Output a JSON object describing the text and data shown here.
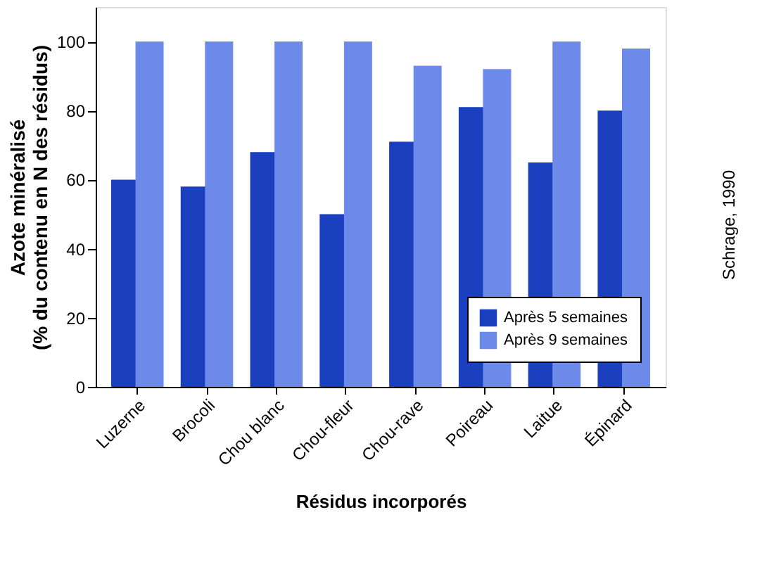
{
  "chart_data": {
    "type": "bar",
    "categories": [
      "Luzerne",
      "Brocoli",
      "Chou blanc",
      "Chou-fleur",
      "Chou-rave",
      "Poireau",
      "Laitue",
      "Épinard"
    ],
    "series": [
      {
        "name": "Après 5 semaines",
        "color": "#1a3fbf",
        "values": [
          60,
          58,
          68,
          50,
          71,
          81,
          65,
          80
        ]
      },
      {
        "name": "Après 9 semaines",
        "color": "#6d8aea",
        "values": [
          100,
          100,
          100,
          100,
          93,
          92,
          100,
          98
        ]
      }
    ],
    "xlabel": "Résidus incorporés",
    "ylabel": "Azote minéralisé\n(% du contenu en N  des résidus)",
    "ylim": [
      0,
      110
    ],
    "yticks": [
      0,
      20,
      40,
      60,
      80,
      100
    ],
    "legend": "bottom right",
    "grid": false,
    "annotations": [
      "Schrage, 1990"
    ]
  }
}
